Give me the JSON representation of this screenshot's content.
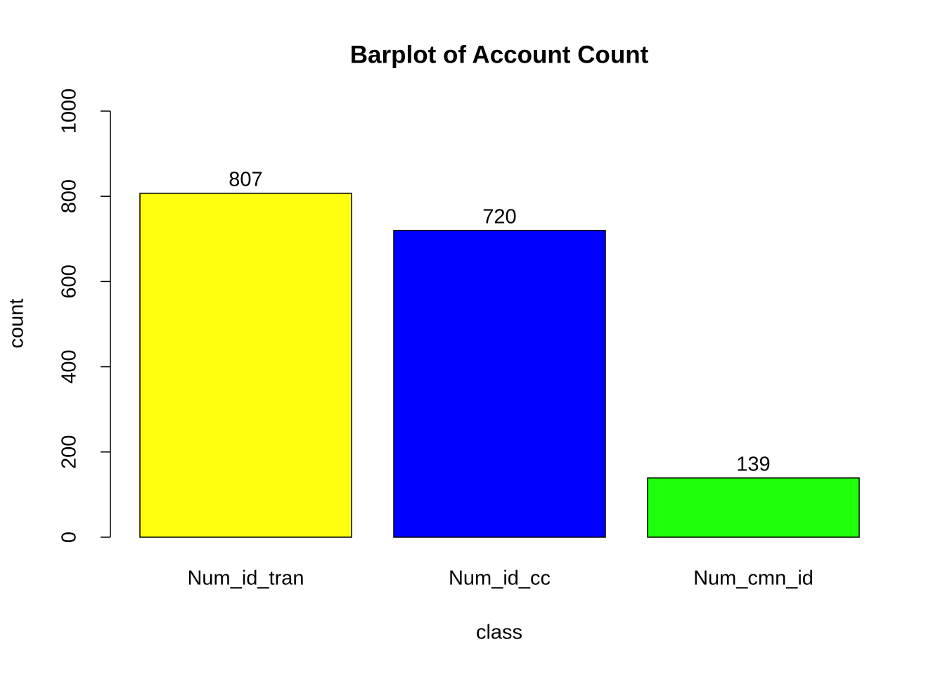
{
  "chart_data": {
    "type": "bar",
    "title": "Barplot of Account Count",
    "x_label": "class",
    "y_label": "count",
    "categories": [
      "Num_id_tran",
      "Num_id_cc",
      "Num_cmn_id"
    ],
    "values": [
      807,
      720,
      139
    ],
    "colors": [
      "#ffff10",
      "#0000ff",
      "#1eff0c"
    ],
    "ylim": [
      0,
      1000
    ],
    "yticks": [
      0,
      200,
      400,
      600,
      800,
      1000
    ],
    "show_value_labels": true
  }
}
